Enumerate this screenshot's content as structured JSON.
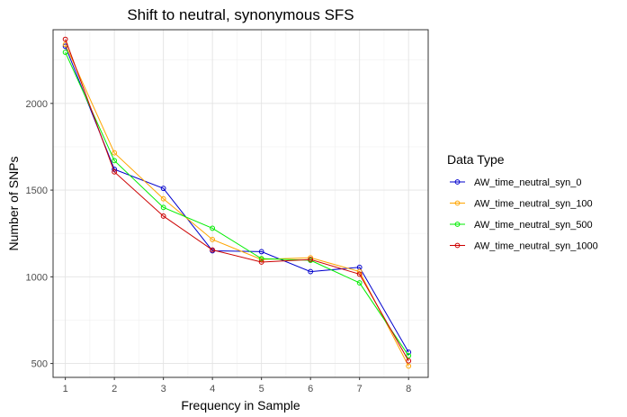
{
  "chart_data": {
    "type": "line",
    "title": "Shift to neutral, synonymous SFS",
    "xlabel": "Frequency in Sample",
    "ylabel": "Number of SNPs",
    "x": [
      1,
      2,
      3,
      4,
      5,
      6,
      7,
      8
    ],
    "xlim": [
      0.75,
      8.4
    ],
    "ylim": [
      420,
      2425
    ],
    "yticks": [
      500,
      1000,
      1500,
      2000
    ],
    "grid": true,
    "legend": {
      "title": "Data Type",
      "position": "right"
    },
    "series": [
      {
        "name": "AW_time_neutral_syn_0",
        "color": "#0000cd",
        "values": [
          2330,
          1620,
          1510,
          1150,
          1145,
          1030,
          1055,
          565
        ]
      },
      {
        "name": "AW_time_neutral_syn_100",
        "color": "#ffa500",
        "values": [
          2340,
          1715,
          1450,
          1215,
          1100,
          1110,
          1030,
          485
        ]
      },
      {
        "name": "AW_time_neutral_syn_500",
        "color": "#00ee00",
        "values": [
          2295,
          1670,
          1400,
          1280,
          1105,
          1095,
          965,
          545
        ]
      },
      {
        "name": "AW_time_neutral_syn_1000",
        "color": "#cd0000",
        "values": [
          2370,
          1605,
          1350,
          1155,
          1085,
          1100,
          1015,
          515
        ]
      }
    ]
  }
}
